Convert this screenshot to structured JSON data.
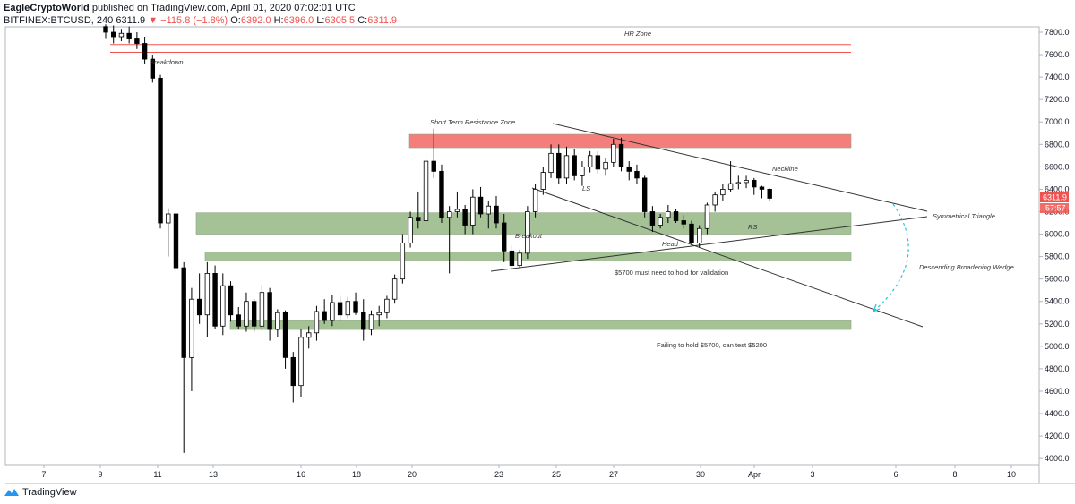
{
  "header": {
    "author": "EagleCryptoWorld",
    "published": "published on TradingView.com, April 01, 2020 07:02:01 UTC",
    "symbol": "BITFINEX:BTCUSD, 240",
    "last": "6311.9",
    "change": "−115.8 (−1.8%)",
    "o_label": "O:",
    "o": "6392.0",
    "h_label": "H:",
    "h": "6396.0",
    "l_label": "L:",
    "l": "6305.5",
    "c_label": "C:",
    "c": "6311.9"
  },
  "footer": {
    "brand": "TradingView"
  },
  "price_tag": {
    "price": "6311.9",
    "countdown": "57:57",
    "color": "#ef5350"
  },
  "colors": {
    "resistance": "#ef5350",
    "support": "#8fb37e",
    "candle": "#000000",
    "up_candle": "#ffffff",
    "wedge": "#26c6da"
  },
  "chart_data": {
    "type": "candlestick",
    "y_ticks": [
      "7800.0",
      "7600.0",
      "7400.0",
      "7200.0",
      "7000.0",
      "6800.0",
      "6600.0",
      "6400.0",
      "6200.0",
      "6000.0",
      "5800.0",
      "5600.0",
      "5400.0",
      "5200.0",
      "5000.0",
      "4800.0",
      "4600.0",
      "4400.0",
      "4200.0",
      "4000.0"
    ],
    "ylim": [
      3950,
      7870
    ],
    "x_ticks": [
      "7",
      "9",
      "11",
      "13",
      "16",
      "18",
      "20",
      "23",
      "25",
      "27",
      "30",
      "Apr",
      "3",
      "6",
      "8",
      "10"
    ],
    "zones": [
      {
        "label": "HR Zone",
        "low": 7620,
        "high": 7690,
        "kind": "resistance-lines"
      },
      {
        "label": "Short Term Resistance Zone",
        "low": 6770,
        "high": 6890,
        "kind": "resistance"
      },
      {
        "label": "RS",
        "low": 6000,
        "high": 6190,
        "kind": "support"
      },
      {
        "label": "",
        "low": 5760,
        "high": 5840,
        "kind": "support"
      },
      {
        "label": "",
        "low": 5150,
        "high": 5230,
        "kind": "support"
      }
    ],
    "annotations": [
      "Breakdown",
      "Breakout",
      "LS",
      "Head",
      "Neckline",
      "Symmetrical Triangle",
      "Descending Broadening Wedge",
      "$5700 must need to hold for validation",
      "Failing to hold $5700, can test $5200"
    ],
    "ohlc": [
      [
        7850,
        7870,
        7740,
        7800
      ],
      [
        7800,
        7860,
        7700,
        7760
      ],
      [
        7760,
        7830,
        7720,
        7790
      ],
      [
        7790,
        7850,
        7700,
        7740
      ],
      [
        7740,
        7800,
        7650,
        7700
      ],
      [
        7700,
        7760,
        7520,
        7560
      ],
      [
        7560,
        7600,
        7350,
        7390
      ],
      [
        7390,
        7420,
        6050,
        6100
      ],
      [
        6100,
        6230,
        5800,
        6180
      ],
      [
        6180,
        6220,
        5650,
        5700
      ],
      [
        5700,
        5750,
        4050,
        4900
      ],
      [
        4900,
        5520,
        4600,
        5420
      ],
      [
        5420,
        5650,
        5200,
        5280
      ],
      [
        5280,
        5750,
        5080,
        5650
      ],
      [
        5650,
        5720,
        5150,
        5180
      ],
      [
        5180,
        5650,
        5100,
        5540
      ],
      [
        5540,
        5580,
        5220,
        5280
      ],
      [
        5280,
        5350,
        5150,
        5180
      ],
      [
        5180,
        5480,
        5130,
        5400
      ],
      [
        5400,
        5420,
        5130,
        5180
      ],
      [
        5180,
        5550,
        5140,
        5480
      ],
      [
        5480,
        5520,
        5050,
        5150
      ],
      [
        5150,
        5330,
        5080,
        5300
      ],
      [
        5300,
        5320,
        4800,
        4900
      ],
      [
        4900,
        4950,
        4500,
        4650
      ],
      [
        4650,
        5150,
        4550,
        5080
      ],
      [
        5080,
        5180,
        4980,
        5120
      ],
      [
        5120,
        5360,
        5050,
        5310
      ],
      [
        5310,
        5420,
        5200,
        5230
      ],
      [
        5230,
        5460,
        5180,
        5390
      ],
      [
        5390,
        5450,
        5220,
        5280
      ],
      [
        5280,
        5440,
        5250,
        5400
      ],
      [
        5400,
        5480,
        5280,
        5300
      ],
      [
        5300,
        5420,
        5050,
        5150
      ],
      [
        5150,
        5320,
        5100,
        5280
      ],
      [
        5280,
        5360,
        5180,
        5300
      ],
      [
        5300,
        5450,
        5250,
        5420
      ],
      [
        5420,
        5640,
        5380,
        5600
      ],
      [
        5600,
        6000,
        5560,
        5920
      ],
      [
        5920,
        6200,
        5880,
        6150
      ],
      [
        6150,
        6380,
        6050,
        6120
      ],
      [
        6120,
        6700,
        6050,
        6650
      ],
      [
        6650,
        6940,
        6500,
        6560
      ],
      [
        6560,
        6620,
        6100,
        6150
      ],
      [
        6150,
        6250,
        5650,
        6200
      ],
      [
        6200,
        6380,
        6150,
        6220
      ],
      [
        6220,
        6260,
        6000,
        6080
      ],
      [
        6080,
        6400,
        6000,
        6330
      ],
      [
        6330,
        6420,
        6150,
        6180
      ],
      [
        6180,
        6300,
        6050,
        6250
      ],
      [
        6250,
        6340,
        6050,
        6100
      ],
      [
        6100,
        6180,
        5750,
        5850
      ],
      [
        5850,
        5900,
        5680,
        5720
      ],
      [
        5720,
        5860,
        5700,
        5830
      ],
      [
        5830,
        6250,
        5780,
        6200
      ],
      [
        6200,
        6450,
        6150,
        6400
      ],
      [
        6400,
        6600,
        6350,
        6550
      ],
      [
        6550,
        6800,
        6500,
        6720
      ],
      [
        6720,
        6800,
        6450,
        6500
      ],
      [
        6500,
        6780,
        6450,
        6700
      ],
      [
        6700,
        6760,
        6480,
        6520
      ],
      [
        6520,
        6650,
        6430,
        6600
      ],
      [
        6600,
        6740,
        6550,
        6700
      ],
      [
        6700,
        6740,
        6540,
        6580
      ],
      [
        6580,
        6680,
        6520,
        6640
      ],
      [
        6640,
        6850,
        6600,
        6800
      ],
      [
        6800,
        6860,
        6560,
        6600
      ],
      [
        6600,
        6650,
        6480,
        6560
      ],
      [
        6560,
        6620,
        6450,
        6500
      ],
      [
        6500,
        6520,
        6150,
        6200
      ],
      [
        6200,
        6250,
        6020,
        6080
      ],
      [
        6080,
        6180,
        6050,
        6150
      ],
      [
        6150,
        6260,
        6100,
        6200
      ],
      [
        6200,
        6220,
        6100,
        6120
      ],
      [
        6120,
        6170,
        6050,
        6090
      ],
      [
        6090,
        6120,
        5900,
        5920
      ],
      [
        5920,
        6080,
        5880,
        6050
      ],
      [
        6050,
        6280,
        6000,
        6260
      ],
      [
        6260,
        6380,
        6200,
        6350
      ],
      [
        6350,
        6450,
        6300,
        6400
      ],
      [
        6400,
        6650,
        6380,
        6450
      ],
      [
        6450,
        6520,
        6400,
        6460
      ],
      [
        6460,
        6520,
        6410,
        6480
      ],
      [
        6480,
        6500,
        6350,
        6420
      ],
      [
        6420,
        6430,
        6320,
        6400
      ],
      [
        6400,
        6410,
        6300,
        6320
      ]
    ]
  }
}
